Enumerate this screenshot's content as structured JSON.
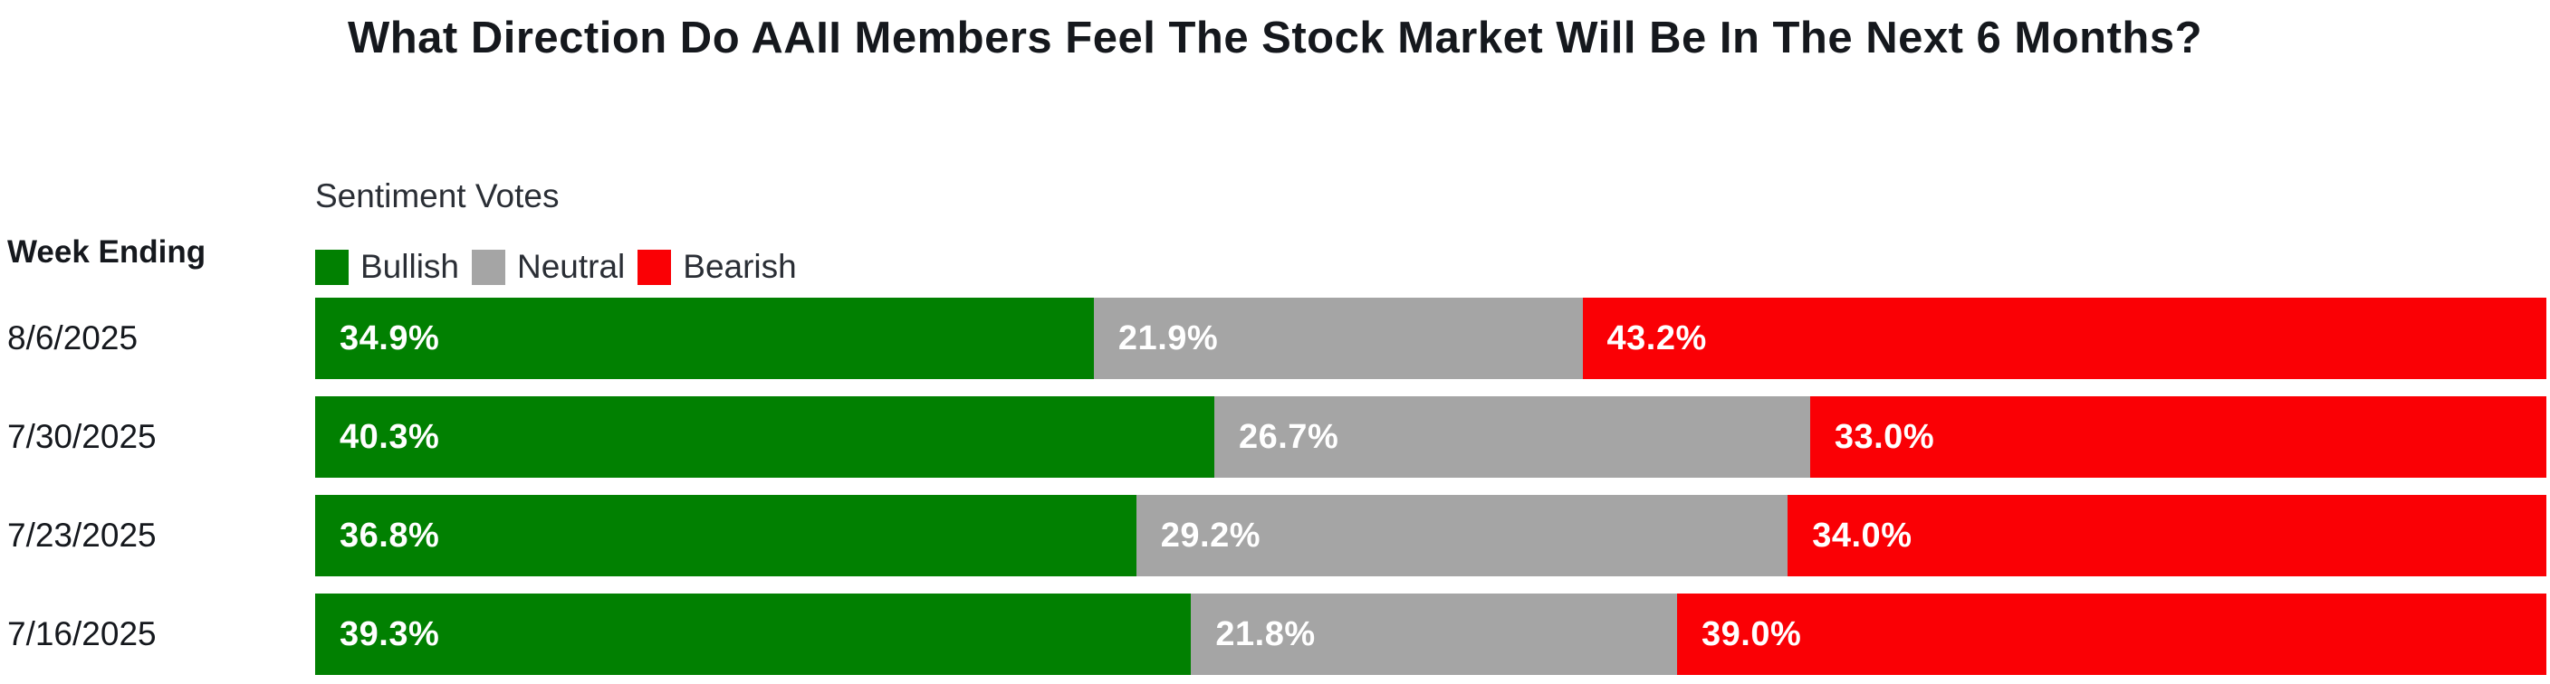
{
  "title": "What Direction Do AAII Members Feel The Stock Market Will Be In The Next 6 Months?",
  "week_ending_label": "Week Ending",
  "legend": {
    "title": "Sentiment Votes",
    "items": [
      {
        "label": "Bullish",
        "color": "#018001"
      },
      {
        "label": "Neutral",
        "color": "#a5a5a5"
      },
      {
        "label": "Bearish",
        "color": "#fa0005"
      }
    ]
  },
  "chart_data": {
    "type": "bar",
    "orientation": "horizontal",
    "stacked": true,
    "unit": "%",
    "title": "What Direction Do AAII Members Feel The Stock Market Will Be In The Next 6 Months?",
    "xlabel": "",
    "ylabel": "Week Ending",
    "xlim": [
      0,
      100
    ],
    "grid": false,
    "legend_position": "top-left",
    "value_labels": "inside-start",
    "categories": [
      "8/6/2025",
      "7/30/2025",
      "7/23/2025",
      "7/16/2025"
    ],
    "series": [
      {
        "name": "Bullish",
        "color": "#018001",
        "values": [
          34.9,
          40.3,
          36.8,
          39.3
        ]
      },
      {
        "name": "Neutral",
        "color": "#a5a5a5",
        "values": [
          21.9,
          26.7,
          29.2,
          21.8
        ]
      },
      {
        "name": "Bearish",
        "color": "#fa0005",
        "values": [
          43.2,
          33.0,
          34.0,
          39.0
        ]
      }
    ]
  }
}
